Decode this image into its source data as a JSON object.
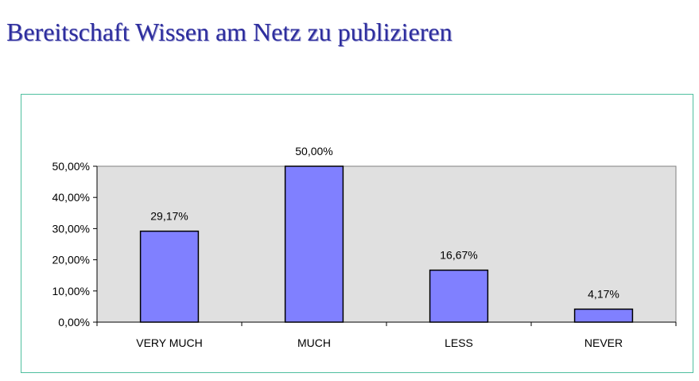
{
  "slide": {
    "title": "Bereitschaft Wissen am Netz zu publizieren"
  },
  "colors": {
    "title": "#2e2e9e",
    "frame_border": "#4fbf9f",
    "plot_background": "#e0e0e0",
    "bar_fill": "#8080ff",
    "bar_stroke": "#000000"
  },
  "chart_data": {
    "type": "bar",
    "title": "",
    "xlabel": "",
    "ylabel": "",
    "categories": [
      "VERY MUCH",
      "MUCH",
      "LESS",
      "NEVER"
    ],
    "values": [
      29.17,
      50.0,
      16.67,
      4.17
    ],
    "data_labels": [
      "29,17%",
      "50,00%",
      "16,67%",
      "4,17%"
    ],
    "ylim": [
      0,
      50
    ],
    "yticks": [
      0,
      10,
      20,
      30,
      40,
      50
    ],
    "ytick_labels": [
      "0,00%",
      "10,00%",
      "20,00%",
      "30,00%",
      "40,00%",
      "50,00%"
    ],
    "grid": false,
    "legend": "none"
  }
}
